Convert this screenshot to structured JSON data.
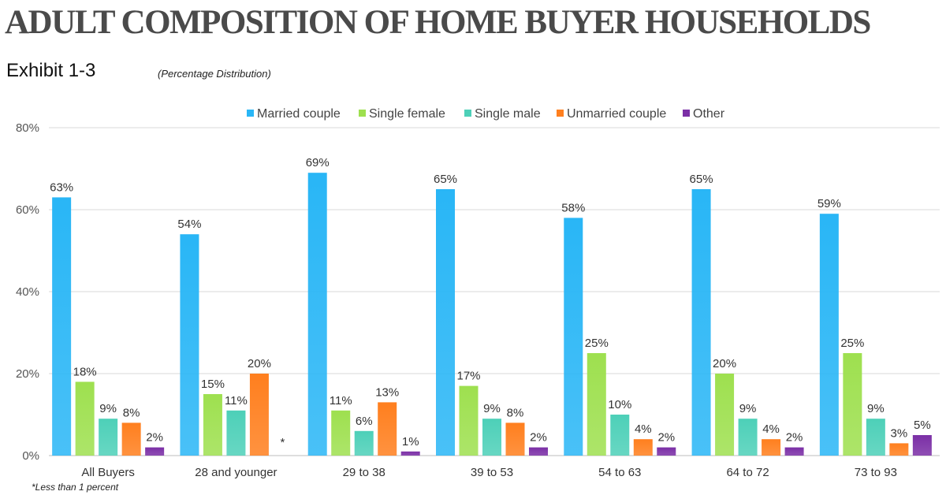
{
  "header": {
    "title": "ADULT COMPOSITION OF HOME BUYER HOUSEHOLDS",
    "exhibit": "Exhibit 1-3",
    "subtitle": "(Percentage Distribution)"
  },
  "footnote": "*Less than 1 percent",
  "chart_data": {
    "type": "bar",
    "title": "",
    "xlabel": "",
    "ylabel": "",
    "ylim": [
      0,
      80
    ],
    "yticks": [
      "0%",
      "20%",
      "40%",
      "60%",
      "80%"
    ],
    "ytick_values": [
      0,
      20,
      40,
      60,
      80
    ],
    "grid": true,
    "legend_position": "top",
    "categories": [
      "All Buyers",
      "28 and younger",
      "29 to 38",
      "39 to 53",
      "54 to 63",
      "64 to 72",
      "73 to 93"
    ],
    "series": [
      {
        "name": "Married couple",
        "color": "#29b6f6",
        "values": [
          63,
          54,
          69,
          65,
          58,
          65,
          59
        ],
        "labels": [
          "63%",
          "54%",
          "69%",
          "65%",
          "58%",
          "65%",
          "59%"
        ]
      },
      {
        "name": "Single female",
        "color": "#9ee04f",
        "values": [
          18,
          15,
          11,
          17,
          25,
          20,
          25
        ],
        "labels": [
          "18%",
          "15%",
          "11%",
          "17%",
          "25%",
          "20%",
          "25%"
        ]
      },
      {
        "name": "Single male",
        "color": "#4dd0b8",
        "values": [
          9,
          11,
          6,
          9,
          10,
          9,
          9
        ],
        "labels": [
          "9%",
          "11%",
          "6%",
          "9%",
          "10%",
          "9%",
          "9%"
        ]
      },
      {
        "name": "Unmarried couple",
        "color": "#ff7f1e",
        "values": [
          8,
          20,
          13,
          8,
          4,
          4,
          3
        ],
        "labels": [
          "8%",
          "20%",
          "13%",
          "8%",
          "4%",
          "4%",
          "3%"
        ]
      },
      {
        "name": "Other",
        "color": "#7b2fa6",
        "values": [
          2,
          0,
          1,
          2,
          2,
          2,
          5
        ],
        "labels": [
          "2%",
          "*",
          "1%",
          "2%",
          "2%",
          "2%",
          "5%"
        ]
      }
    ]
  }
}
